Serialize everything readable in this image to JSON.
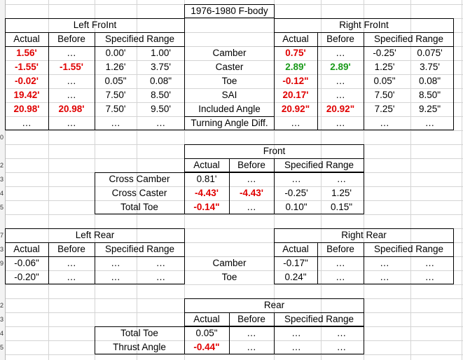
{
  "title": "1976-1980 F-body",
  "left_front": {
    "header": "Left FroInt",
    "cols": [
      "Actual",
      "Before",
      "Specified Range"
    ],
    "rows": [
      {
        "actual": "1.56'",
        "before": "…",
        "min": "0.00'",
        "max": "1.00'"
      },
      {
        "actual": "-1.55'",
        "before": "-1.55'",
        "min": "1.26'",
        "max": "3.75'"
      },
      {
        "actual": "-0.02'",
        "before": "…",
        "min": "0.05\"",
        "max": "0.08\""
      },
      {
        "actual": "19.42'",
        "before": "…",
        "min": "7.50'",
        "max": "8.50'"
      },
      {
        "actual": "20.98'",
        "before": "20.98'",
        "min": "7.50'",
        "max": "9.50'"
      },
      {
        "actual": "…",
        "before": "…",
        "min": "…",
        "max": "…"
      }
    ]
  },
  "middle_labels": [
    "Camber",
    "Caster",
    "Toe",
    "SAI",
    "Included Angle",
    "Turning Angle Diff."
  ],
  "right_front": {
    "header": "Right FroInt",
    "cols": [
      "Actual",
      "Before",
      "Specified Range"
    ],
    "rows": [
      {
        "actual": "0.75'",
        "before": "…",
        "min": "-0.25'",
        "max": "0.075'"
      },
      {
        "actual": "2.89'",
        "before": "2.89'",
        "min": "1.25'",
        "max": "3.75'"
      },
      {
        "actual": "-0.12\"",
        "before": "…",
        "min": "0.05\"",
        "max": "0.08\""
      },
      {
        "actual": "20.17'",
        "before": "…",
        "min": "7.50'",
        "max": "8.50\""
      },
      {
        "actual": "20.92\"",
        "before": "20.92\"",
        "min": "7.25'",
        "max": "9.25\""
      },
      {
        "actual": "…",
        "before": "…",
        "min": "…",
        "max": "…"
      }
    ]
  },
  "front": {
    "header": "Front",
    "cols": [
      "Actual",
      "Before",
      "Specified Range"
    ],
    "rows": [
      {
        "label": "Cross Camber",
        "actual": "0.81'",
        "before": "…",
        "min": "…",
        "max": "…"
      },
      {
        "label": "Cross Caster",
        "actual": "-4.43'",
        "before": "-4.43'",
        "min": "-0.25'",
        "max": "1.25'"
      },
      {
        "label": "Total Toe",
        "actual": "-0.14\"",
        "before": "…",
        "min": "0.10\"",
        "max": "0.15\""
      }
    ]
  },
  "left_rear": {
    "header": "Left Rear",
    "cols": [
      "Actual",
      "Before",
      "Specified Range"
    ],
    "rows": [
      {
        "actual": "-0.06\"",
        "before": "…",
        "min": "…",
        "max": "…"
      },
      {
        "actual": "-0.20\"",
        "before": "…",
        "min": "…",
        "max": "…"
      }
    ]
  },
  "rear_middle_labels": [
    "Camber",
    "Toe"
  ],
  "right_rear": {
    "header": "Right Rear",
    "cols": [
      "Actual",
      "Before",
      "Specified Range"
    ],
    "rows": [
      {
        "actual": "-0.17\"",
        "before": "…",
        "min": "…",
        "max": "…"
      },
      {
        "actual": "0.24\"",
        "before": "…",
        "min": "…",
        "max": "…"
      }
    ]
  },
  "rear": {
    "header": "Rear",
    "cols": [
      "Actual",
      "Before",
      "Specified Range"
    ],
    "rows": [
      {
        "label": "Total Toe",
        "actual": "0.05\"",
        "before": "…",
        "min": "…",
        "max": "…"
      },
      {
        "label": "Thrust Angle",
        "actual": "-0.44\"",
        "before": "…",
        "min": "…",
        "max": "…"
      }
    ]
  },
  "row_numbers": [
    "",
    "",
    "",
    "",
    "",
    "",
    "",
    "",
    "",
    "0",
    "",
    "2",
    "3",
    "4",
    "5",
    "",
    "7",
    "3",
    "9",
    "",
    "",
    "2",
    "3",
    "4",
    "5"
  ],
  "colors": {
    "red": "#e00000",
    "green": "#1a9a1a",
    "grid": "#d4d4d4"
  }
}
